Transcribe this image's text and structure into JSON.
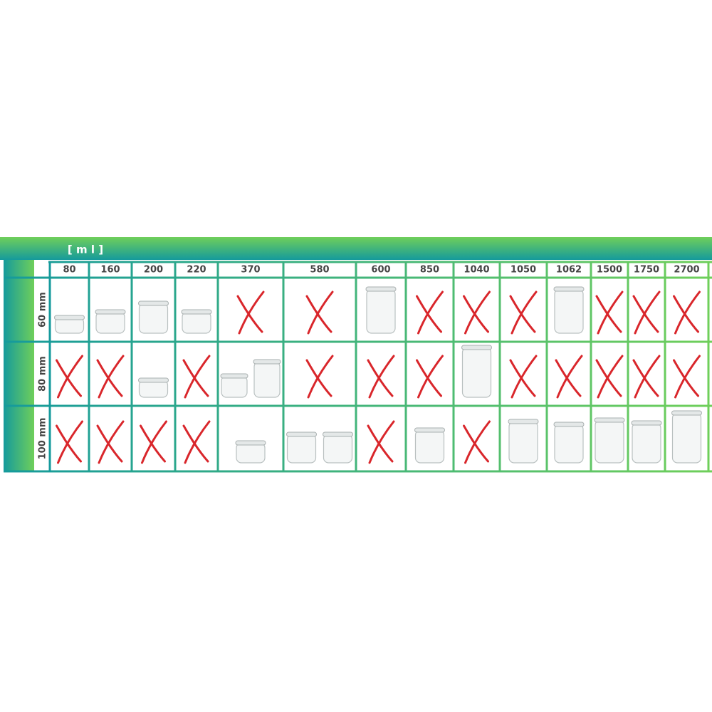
{
  "header": {
    "unit": "[ m l ]"
  },
  "columns": [
    "80",
    "160",
    "200",
    "220",
    "370",
    "580",
    "600",
    "850",
    "1040",
    "1050",
    "1062",
    "1500",
    "1750",
    "2700"
  ],
  "rows": [
    "60 mm",
    "80 mm",
    "100 mm"
  ]
}
